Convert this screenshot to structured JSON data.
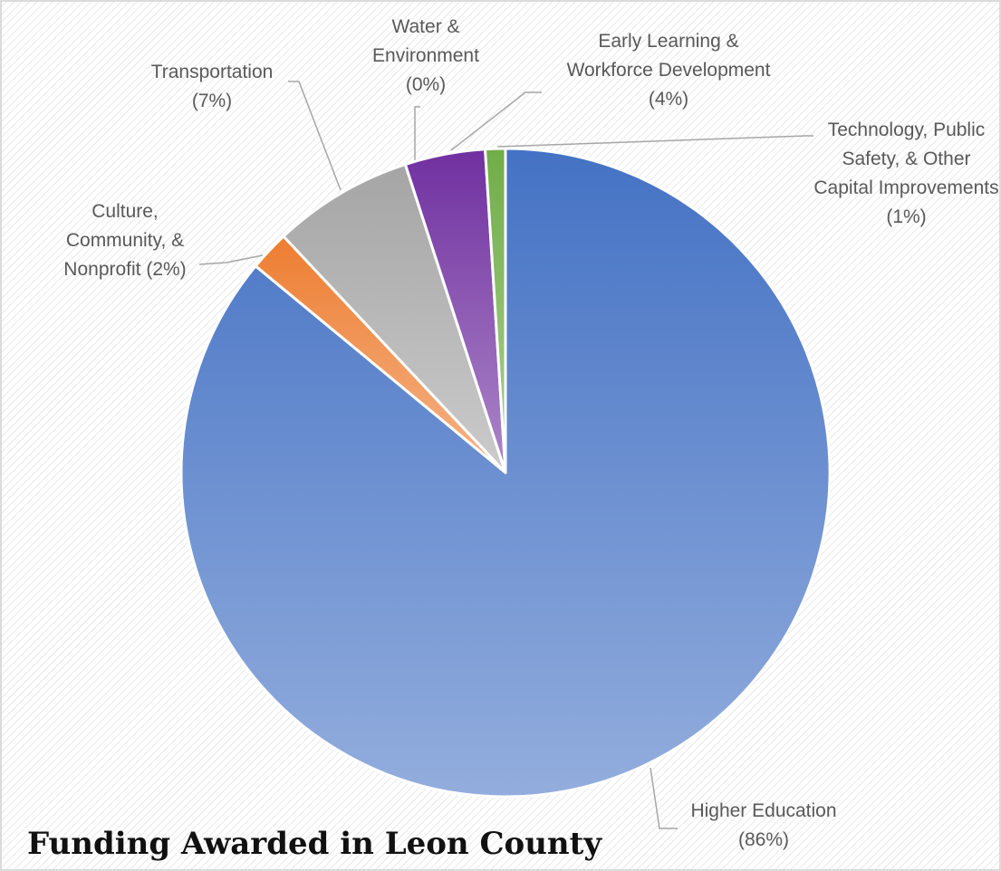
{
  "chart_data": {
    "type": "pie",
    "title": "Funding Awarded in Leon County",
    "categories": [
      "Higher Education",
      "Culture, Community, &",
      "Transportation",
      "Water & Environment",
      "Early Learning & Workforce Development",
      "Technology, Public Safety, & Other Capital Improvements"
    ],
    "values": [
      86,
      2,
      7,
      0,
      4,
      1
    ],
    "value_labels": [
      "(86%)",
      "Nonprofit (2%)",
      "(7%)",
      "(0%)",
      "(4%)",
      "(1%)"
    ],
    "colors": [
      "#4472c4",
      "#ed7d31",
      "#a5a5a5",
      "#ffc000",
      "#7030a0",
      "#70ad47"
    ]
  }
}
